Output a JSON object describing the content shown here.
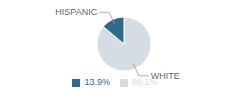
{
  "chart_data": {
    "type": "pie",
    "categories": [
      "WHITE",
      "HISPANIC"
    ],
    "values": [
      86.1,
      13.9
    ],
    "value_labels": [
      "86.1%",
      "13.9%"
    ],
    "colors": [
      "#d6dce4",
      "#2e6b8a"
    ],
    "legend": "bottom"
  }
}
